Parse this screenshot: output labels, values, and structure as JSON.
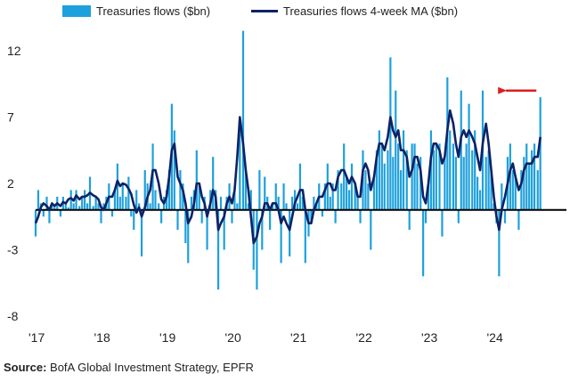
{
  "chart_data": {
    "type": "bar",
    "title": "",
    "xlabel": "",
    "ylabel": "",
    "ylim": [
      -8,
      14
    ],
    "yticks": [
      12,
      7,
      2,
      -3,
      -8
    ],
    "ytick_labels": [
      "12",
      "7",
      "2",
      "-3",
      "-8"
    ],
    "xlim": [
      2017.0,
      2025.0
    ],
    "xticks": [
      2017,
      2018,
      2019,
      2020,
      2021,
      2022,
      2023,
      2024
    ],
    "xtick_labels": [
      "'17",
      "'18",
      "'19",
      "'20",
      "'21",
      "'22",
      "'23",
      "'24"
    ],
    "legend_position": "top",
    "series": [
      {
        "name": "Treasuries flows ($bn)",
        "type": "bar",
        "color": "#1ea0dc",
        "x": [
          2017.0,
          2017.04,
          2017.08,
          2017.12,
          2017.17,
          2017.21,
          2017.25,
          2017.29,
          2017.33,
          2017.38,
          2017.42,
          2017.46,
          2017.5,
          2017.54,
          2017.58,
          2017.62,
          2017.67,
          2017.71,
          2017.75,
          2017.79,
          2017.83,
          2017.88,
          2017.92,
          2017.96,
          2018.0,
          2018.04,
          2018.08,
          2018.12,
          2018.17,
          2018.21,
          2018.25,
          2018.29,
          2018.33,
          2018.38,
          2018.42,
          2018.46,
          2018.5,
          2018.54,
          2018.58,
          2018.62,
          2018.67,
          2018.71,
          2018.75,
          2018.79,
          2018.83,
          2018.88,
          2018.92,
          2018.96,
          2019.0,
          2019.04,
          2019.08,
          2019.12,
          2019.17,
          2019.21,
          2019.25,
          2019.29,
          2019.33,
          2019.38,
          2019.42,
          2019.46,
          2019.5,
          2019.54,
          2019.58,
          2019.62,
          2019.67,
          2019.71,
          2019.75,
          2019.79,
          2019.83,
          2019.88,
          2019.92,
          2019.96,
          2020.0,
          2020.04,
          2020.08,
          2020.12,
          2020.17,
          2020.21,
          2020.25,
          2020.29,
          2020.33,
          2020.38,
          2020.42,
          2020.46,
          2020.5,
          2020.54,
          2020.58,
          2020.62,
          2020.67,
          2020.71,
          2020.75,
          2020.79,
          2020.83,
          2020.88,
          2020.92,
          2020.96,
          2021.0,
          2021.04,
          2021.08,
          2021.12,
          2021.17,
          2021.21,
          2021.25,
          2021.29,
          2021.33,
          2021.38,
          2021.42,
          2021.46,
          2021.5,
          2021.54,
          2021.58,
          2021.62,
          2021.67,
          2021.71,
          2021.75,
          2021.79,
          2021.83,
          2021.88,
          2021.92,
          2021.96,
          2022.0,
          2022.04,
          2022.08,
          2022.12,
          2022.17,
          2022.21,
          2022.25,
          2022.29,
          2022.33,
          2022.38,
          2022.42,
          2022.46,
          2022.5,
          2022.54,
          2022.58,
          2022.62,
          2022.67,
          2022.71,
          2022.75,
          2022.79,
          2022.83,
          2022.88,
          2022.92,
          2022.96,
          2023.0,
          2023.04,
          2023.08,
          2023.12,
          2023.17,
          2023.21,
          2023.25,
          2023.29,
          2023.33,
          2023.38,
          2023.42,
          2023.46,
          2023.5,
          2023.54,
          2023.58,
          2023.62,
          2023.67,
          2023.71,
          2023.75,
          2023.79,
          2023.83,
          2023.88,
          2023.92,
          2023.96,
          2024.0,
          2024.04,
          2024.08,
          2024.12,
          2024.17,
          2024.21,
          2024.25,
          2024.29,
          2024.33,
          2024.38,
          2024.42,
          2024.46,
          2024.5,
          2024.54,
          2024.58,
          2024.62,
          2024.67,
          2024.71
        ],
        "values": [
          -2.0,
          1.5,
          0.5,
          -0.5,
          1.0,
          -1.0,
          0.5,
          0.2,
          1.0,
          -0.5,
          1.0,
          0.5,
          0.2,
          1.5,
          0.5,
          1.5,
          0.3,
          1.0,
          1.5,
          0.5,
          2.5,
          0.3,
          1.0,
          0.5,
          -1.0,
          0.5,
          1.0,
          2.0,
          -0.5,
          1.5,
          3.5,
          1.0,
          2.0,
          1.0,
          2.5,
          -0.5,
          -1.5,
          1.5,
          0.5,
          -3.5,
          3.0,
          2.0,
          0.5,
          5.0,
          1.5,
          0.5,
          -1.0,
          1.0,
          1.5,
          3.0,
          8.0,
          6.0,
          -1.5,
          3.0,
          2.0,
          -2.5,
          -4.0,
          1.0,
          1.5,
          4.5,
          2.0,
          -1.0,
          1.0,
          -3.0,
          1.5,
          4.0,
          1.5,
          -6.0,
          1.0,
          -3.0,
          1.0,
          2.0,
          -1.0,
          1.5,
          0.5,
          6.5,
          13.5,
          3.0,
          0.5,
          1.5,
          -4.5,
          -6.0,
          3.0,
          -3.0,
          2.5,
          1.0,
          -1.5,
          0.5,
          2.0,
          1.0,
          -4.0,
          2.0,
          0.5,
          -3.5,
          1.0,
          1.5,
          0.5,
          3.5,
          1.0,
          -4.0,
          -2.0,
          -1.0,
          1.0,
          0.5,
          2.0,
          -0.5,
          2.0,
          3.5,
          1.0,
          2.0,
          -1.0,
          3.0,
          2.0,
          5.0,
          2.5,
          1.5,
          3.5,
          2.0,
          1.0,
          -1.0,
          4.5,
          3.0,
          2.0,
          -3.0,
          2.5,
          4.5,
          6.0,
          5.0,
          3.5,
          4.5,
          11.5,
          4.0,
          9.0,
          5.0,
          3.0,
          6.0,
          4.5,
          -1.5,
          5.0,
          5.0,
          3.5,
          4.0,
          -5.0,
          -1.0,
          2.0,
          6.0,
          4.5,
          5.0,
          5.0,
          -2.0,
          4.0,
          10.0,
          6.0,
          5.0,
          4.0,
          -1.0,
          9.0,
          4.0,
          5.0,
          8.0,
          4.5,
          6.0,
          2.5,
          1.5,
          9.0,
          4.0,
          4.5,
          3.0,
          0.5,
          -1.0,
          -5.0,
          2.0,
          -1.0,
          4.0,
          5.0,
          3.0,
          2.5,
          -1.5,
          3.0,
          4.0,
          5.0,
          3.5,
          4.5,
          5.0,
          3.0,
          8.5
        ]
      },
      {
        "name": "Treasuries flows 4-week MA ($bn)",
        "type": "line",
        "color": "#0d2266",
        "x": [
          2017.0,
          2017.04,
          2017.08,
          2017.12,
          2017.17,
          2017.21,
          2017.25,
          2017.29,
          2017.33,
          2017.38,
          2017.42,
          2017.46,
          2017.5,
          2017.54,
          2017.58,
          2017.62,
          2017.67,
          2017.71,
          2017.75,
          2017.79,
          2017.83,
          2017.88,
          2017.92,
          2017.96,
          2018.0,
          2018.04,
          2018.08,
          2018.12,
          2018.17,
          2018.21,
          2018.25,
          2018.29,
          2018.33,
          2018.38,
          2018.42,
          2018.46,
          2018.5,
          2018.54,
          2018.58,
          2018.62,
          2018.67,
          2018.71,
          2018.75,
          2018.79,
          2018.83,
          2018.88,
          2018.92,
          2018.96,
          2019.0,
          2019.04,
          2019.08,
          2019.12,
          2019.17,
          2019.21,
          2019.25,
          2019.29,
          2019.33,
          2019.38,
          2019.42,
          2019.46,
          2019.5,
          2019.54,
          2019.58,
          2019.62,
          2019.67,
          2019.71,
          2019.75,
          2019.79,
          2019.83,
          2019.88,
          2019.92,
          2019.96,
          2020.0,
          2020.04,
          2020.08,
          2020.12,
          2020.17,
          2020.21,
          2020.25,
          2020.29,
          2020.33,
          2020.38,
          2020.42,
          2020.46,
          2020.5,
          2020.54,
          2020.58,
          2020.62,
          2020.67,
          2020.71,
          2020.75,
          2020.79,
          2020.83,
          2020.88,
          2020.92,
          2020.96,
          2021.0,
          2021.04,
          2021.08,
          2021.12,
          2021.17,
          2021.21,
          2021.25,
          2021.29,
          2021.33,
          2021.38,
          2021.42,
          2021.46,
          2021.5,
          2021.54,
          2021.58,
          2021.62,
          2021.67,
          2021.71,
          2021.75,
          2021.79,
          2021.83,
          2021.88,
          2021.92,
          2021.96,
          2022.0,
          2022.04,
          2022.08,
          2022.12,
          2022.17,
          2022.21,
          2022.25,
          2022.29,
          2022.33,
          2022.38,
          2022.42,
          2022.46,
          2022.5,
          2022.54,
          2022.58,
          2022.62,
          2022.67,
          2022.71,
          2022.75,
          2022.79,
          2022.83,
          2022.88,
          2022.92,
          2022.96,
          2023.0,
          2023.04,
          2023.08,
          2023.12,
          2023.17,
          2023.21,
          2023.25,
          2023.29,
          2023.33,
          2023.38,
          2023.42,
          2023.46,
          2023.5,
          2023.54,
          2023.58,
          2023.62,
          2023.67,
          2023.71,
          2023.75,
          2023.79,
          2023.83,
          2023.88,
          2023.92,
          2023.96,
          2024.0,
          2024.04,
          2024.08,
          2024.12,
          2024.17,
          2024.21,
          2024.25,
          2024.29,
          2024.33,
          2024.38,
          2024.42,
          2024.46,
          2024.5,
          2024.54,
          2024.58,
          2024.62,
          2024.67,
          2024.71
        ],
        "values": [
          -1.0,
          -0.5,
          0.2,
          0.5,
          0.3,
          0.0,
          0.5,
          0.3,
          0.5,
          0.3,
          0.6,
          0.5,
          0.8,
          0.9,
          0.7,
          1.1,
          0.8,
          1.0,
          1.0,
          1.1,
          1.3,
          1.1,
          1.0,
          0.8,
          0.2,
          0.0,
          0.5,
          1.0,
          1.0,
          1.5,
          2.2,
          1.8,
          2.0,
          1.9,
          1.6,
          1.2,
          0.4,
          -0.2,
          0.2,
          -0.5,
          0.2,
          1.0,
          1.5,
          3.0,
          3.0,
          2.0,
          0.8,
          0.5,
          1.0,
          2.5,
          4.5,
          5.0,
          2.5,
          2.0,
          1.5,
          0.5,
          -1.0,
          -0.5,
          0.5,
          2.0,
          2.0,
          1.0,
          0.5,
          -0.5,
          0.5,
          1.5,
          1.0,
          -1.5,
          -1.0,
          -0.5,
          0.5,
          1.0,
          0.5,
          1.5,
          4.0,
          7.0,
          5.0,
          3.0,
          1.5,
          -0.5,
          -2.5,
          -2.0,
          -1.0,
          -0.5,
          0.5,
          0.5,
          0.0,
          0.5,
          0.5,
          0.0,
          -1.0,
          -0.5,
          -1.0,
          -1.5,
          -0.5,
          0.5,
          1.0,
          1.5,
          1.5,
          0.0,
          -1.0,
          -1.0,
          0.0,
          0.5,
          1.0,
          1.0,
          1.5,
          2.0,
          2.0,
          1.5,
          1.5,
          2.5,
          3.0,
          3.0,
          2.5,
          2.0,
          2.5,
          2.0,
          1.0,
          1.0,
          3.0,
          3.5,
          3.0,
          1.5,
          2.5,
          4.0,
          5.0,
          5.0,
          4.5,
          5.5,
          7.0,
          6.0,
          5.5,
          6.0,
          4.5,
          4.5,
          4.0,
          2.5,
          3.0,
          4.0,
          4.0,
          3.0,
          1.0,
          0.5,
          2.0,
          4.0,
          5.0,
          5.0,
          4.5,
          3.5,
          4.0,
          6.0,
          7.5,
          6.5,
          5.0,
          4.0,
          5.5,
          6.0,
          5.5,
          6.0,
          5.5,
          5.0,
          4.0,
          3.0,
          5.0,
          6.5,
          5.0,
          3.0,
          1.0,
          -0.5,
          -1.5,
          0.0,
          1.0,
          2.0,
          3.0,
          3.5,
          2.5,
          1.5,
          2.0,
          3.0,
          3.5,
          3.5,
          3.5,
          4.0,
          4.0,
          5.5
        ]
      }
    ],
    "annotations": [
      {
        "type": "arrow",
        "color": "#dd1e1e",
        "from": [
          2024.65,
          9.0
        ],
        "to": [
          2024.05,
          9.0
        ]
      }
    ],
    "zero_line_color": "#000000"
  },
  "legend": {
    "bar_label": "Treasuries flows ($bn)",
    "line_label": "Treasuries flows 4-week MA ($bn)"
  },
  "source": {
    "prefix": "Source:",
    "text": " BofA Global Investment Strategy, EPFR"
  },
  "colors": {
    "bar": "#1ea0dc",
    "line": "#0d2266",
    "arrow": "#dd1e1e",
    "axis": "#000000",
    "text": "#222222"
  }
}
